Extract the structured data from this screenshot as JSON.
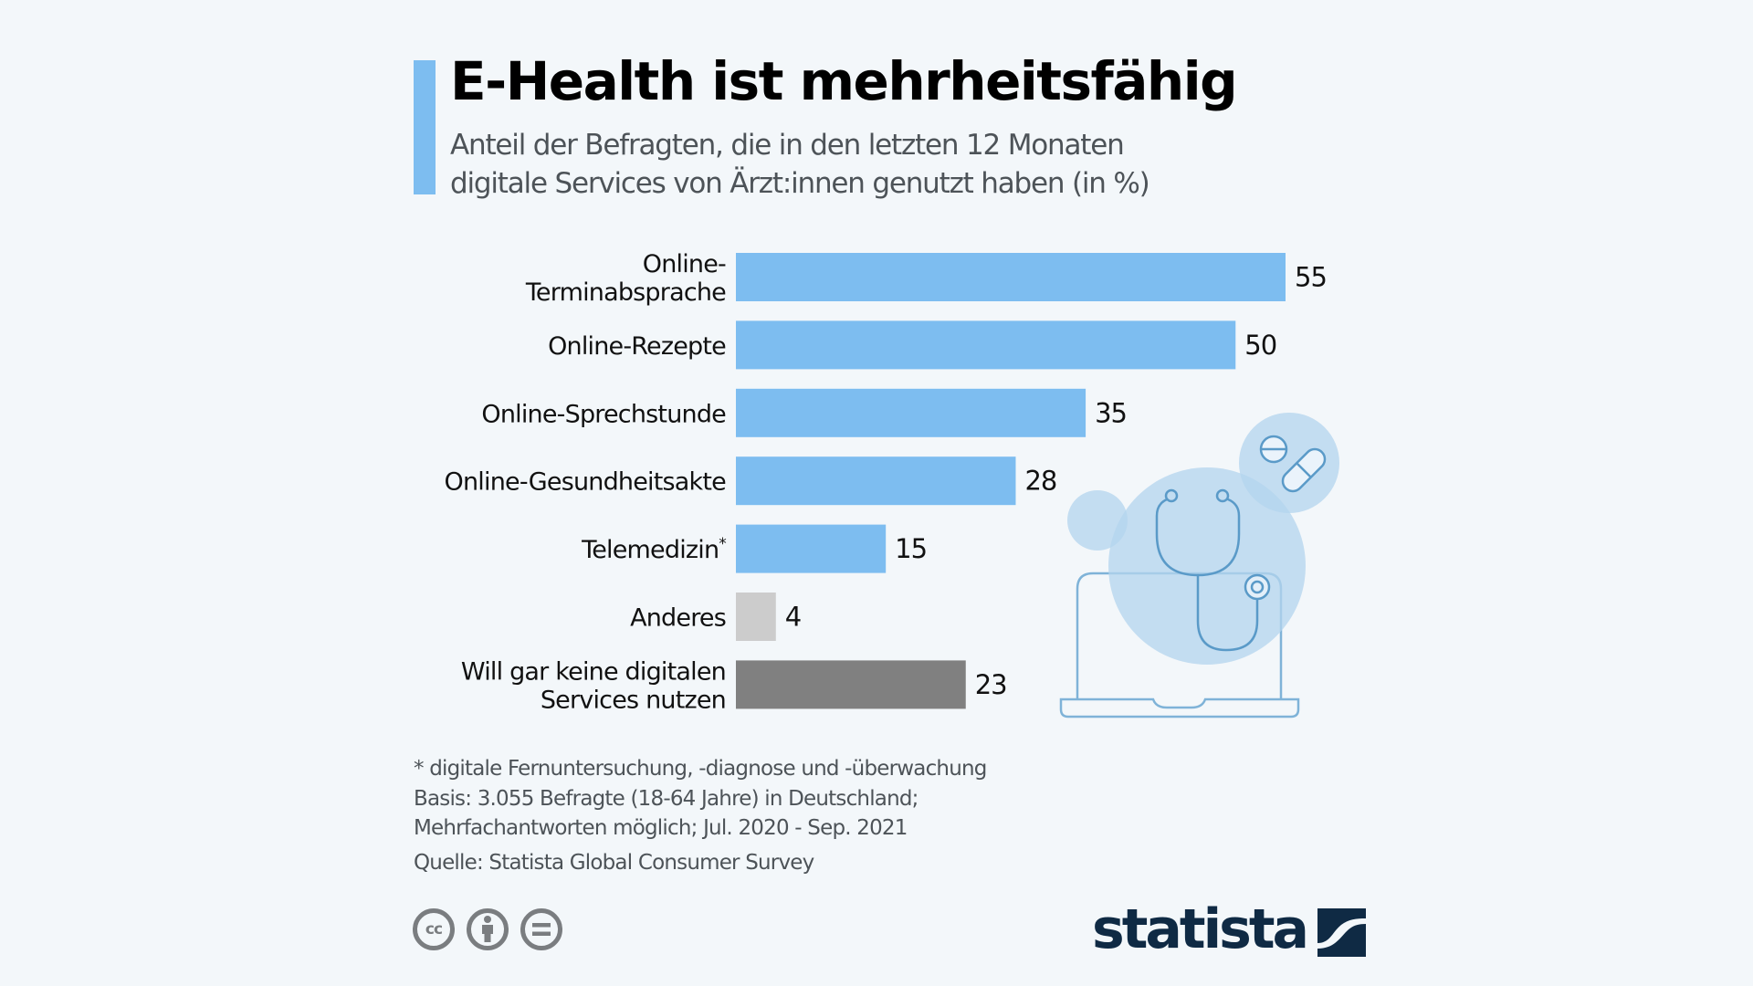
{
  "header": {
    "title": "E-Health ist mehrheitsfähig",
    "subtitle_lines": [
      "Anteil der Befragten, die in den letzten 12 Monaten",
      "digitale Services von Ärzt:innen genutzt haben (in %)"
    ]
  },
  "colors": {
    "accent": "#7dbdf0",
    "bar_primary": "#7dbdf0",
    "bar_other": "#cccccc",
    "bar_none": "#808080",
    "background": "#f3f7fa",
    "brand": "#0f2a44"
  },
  "chart_data": {
    "type": "bar",
    "orientation": "horizontal",
    "title": "E-Health ist mehrheitsfähig",
    "subtitle": "Anteil der Befragten, die in den letzten 12 Monaten digitale Services von Ärzt:innen genutzt haben (in %)",
    "xlabel": "",
    "ylabel": "",
    "unit": "%",
    "xlim": [
      0,
      55
    ],
    "grid": false,
    "legend": "none",
    "categories": [
      {
        "lines": [
          "Online-",
          "Terminabsprache"
        ],
        "sup": ""
      },
      {
        "lines": [
          "Online-Rezepte"
        ],
        "sup": ""
      },
      {
        "lines": [
          "Online-Sprechstunde"
        ],
        "sup": ""
      },
      {
        "lines": [
          "Online-Gesundheitsakte"
        ],
        "sup": ""
      },
      {
        "lines": [
          "Telemedizin"
        ],
        "sup": "*"
      },
      {
        "lines": [
          "Anderes"
        ],
        "sup": ""
      },
      {
        "lines": [
          "Will gar keine digitalen",
          "Services nutzen"
        ],
        "sup": ""
      }
    ],
    "values": [
      55,
      50,
      35,
      28,
      15,
      4,
      23
    ],
    "value_labels": [
      "55",
      "50",
      "35",
      "28",
      "15",
      "4",
      "23"
    ],
    "bar_color_keys": [
      "bar_primary",
      "bar_primary",
      "bar_primary",
      "bar_primary",
      "bar_primary",
      "bar_other",
      "bar_none"
    ]
  },
  "illustration": {
    "icons": [
      "laptop-icon",
      "stethoscope-icon",
      "pill-icon",
      "tablet-icon"
    ]
  },
  "footer": {
    "notes": [
      "* digitale Fernuntersuchung, -diagnose und -überwachung",
      "Basis: 3.055 Befragte (18-64 Jahre) in Deutschland;",
      "Mehrfachantworten möglich; Jul. 2020 - Sep. 2021"
    ],
    "source": "Quelle: Statista Global Consumer Survey",
    "license_icons": [
      "cc-icon",
      "attribution-icon",
      "no-derivatives-icon"
    ],
    "cc_text": "cc",
    "brand": "statista"
  }
}
